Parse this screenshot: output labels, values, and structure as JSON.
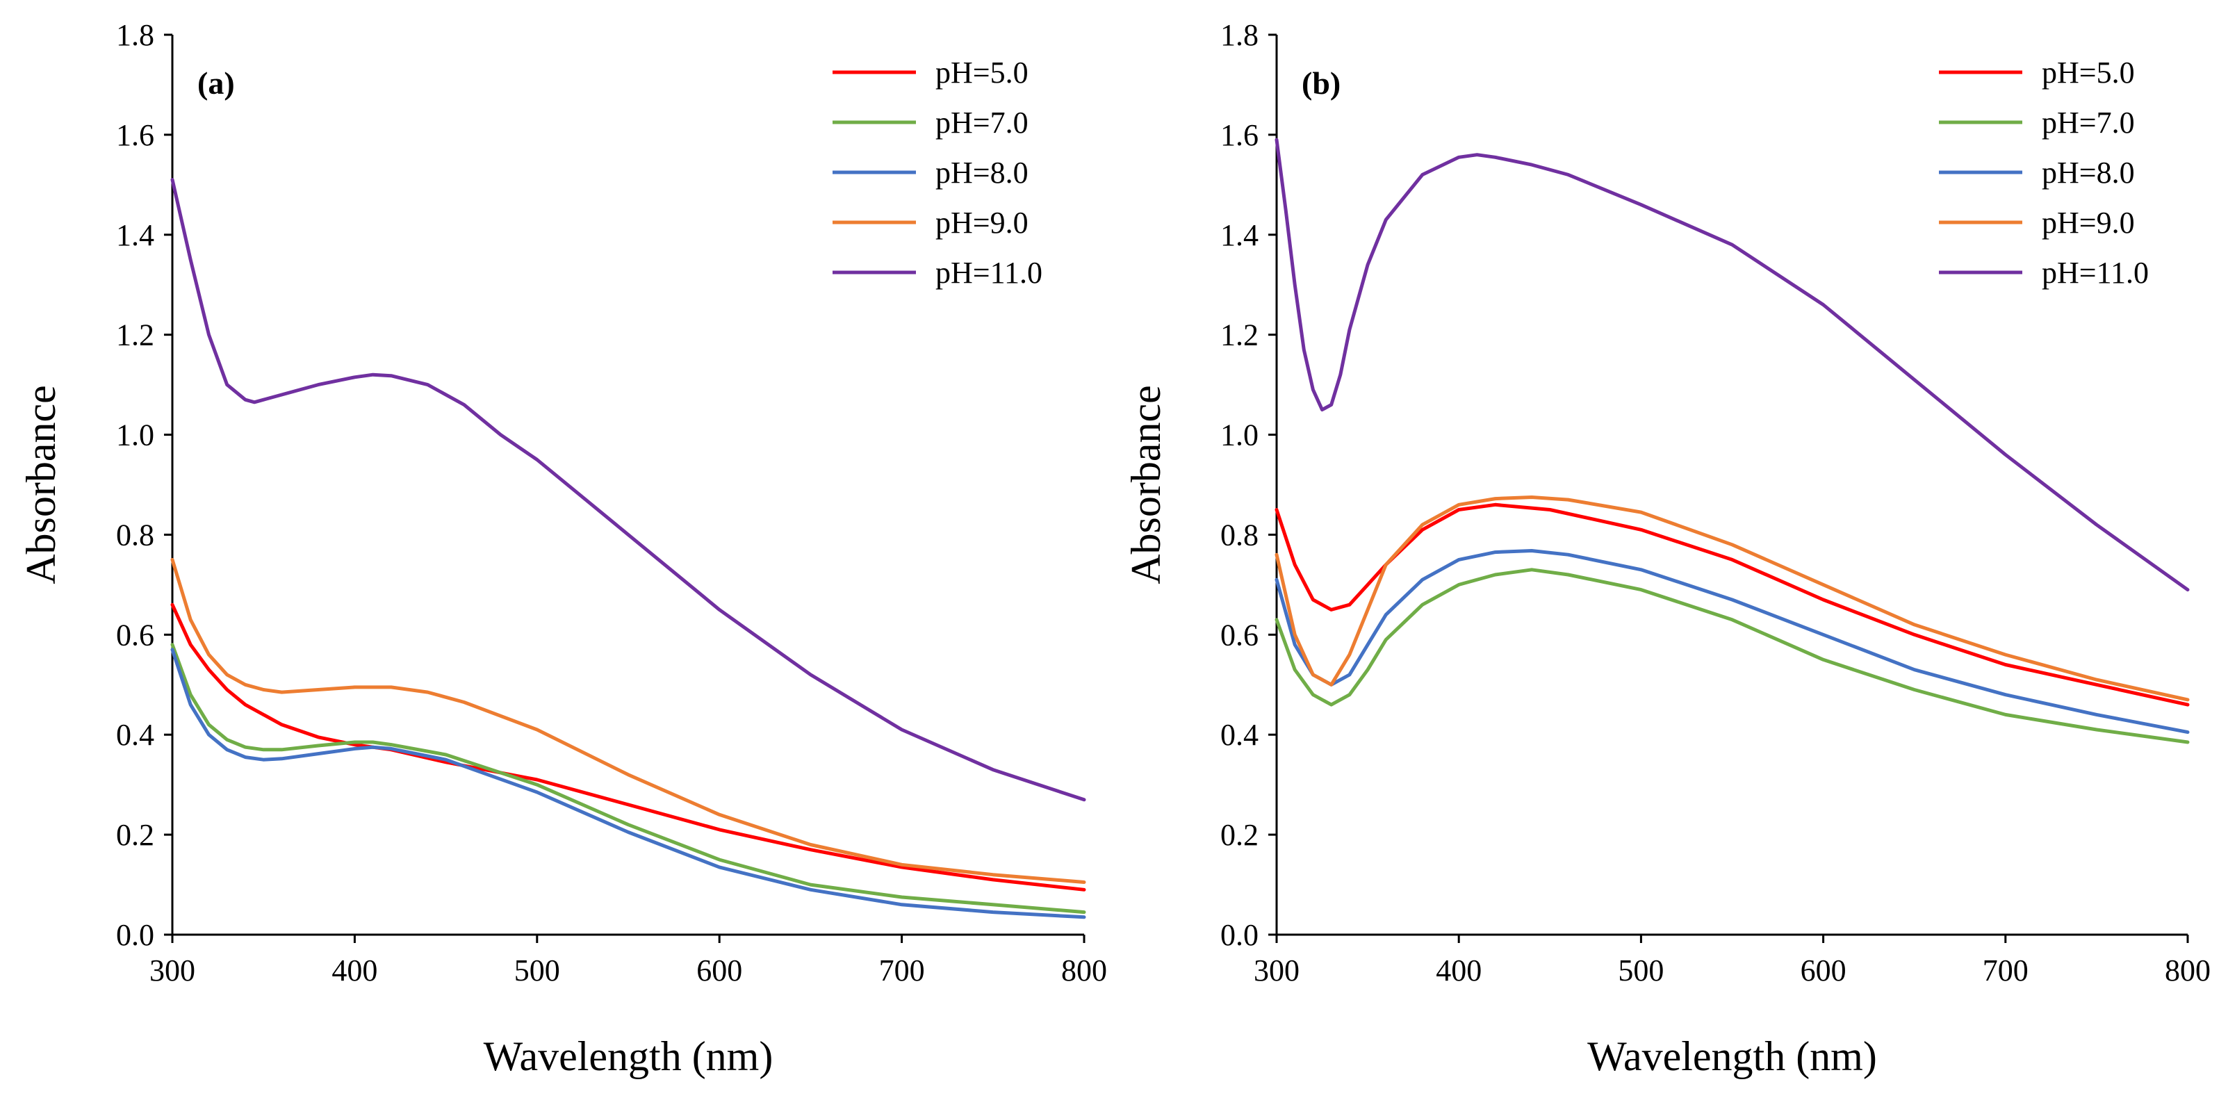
{
  "chart_data": [
    {
      "type": "line",
      "panel_label": "(a)",
      "xlabel": "Wavelength (nm)",
      "ylabel": "Absorbance",
      "xlim": [
        300,
        800
      ],
      "ylim": [
        0,
        1.8
      ],
      "xticks": [
        300,
        400,
        500,
        600,
        700,
        800
      ],
      "yticks": [
        0.0,
        0.2,
        0.4,
        0.6,
        0.8,
        1.0,
        1.2,
        1.4,
        1.6,
        1.8
      ],
      "xtick_labels": [
        "300",
        "400",
        "500",
        "600",
        "700",
        "800"
      ],
      "ytick_labels": [
        "0.0",
        "0.2",
        "0.4",
        "0.6",
        "0.8",
        "1.0",
        "1.2",
        "1.4",
        "1.6",
        "1.8"
      ],
      "grid": false,
      "legend": "top-right",
      "series": [
        {
          "name": "pH=5.0",
          "color": "#ff0000",
          "x": [
            300,
            310,
            320,
            330,
            340,
            350,
            360,
            380,
            400,
            420,
            450,
            500,
            550,
            600,
            650,
            700,
            750,
            800
          ],
          "y": [
            0.66,
            0.58,
            0.53,
            0.49,
            0.46,
            0.44,
            0.42,
            0.395,
            0.38,
            0.37,
            0.345,
            0.31,
            0.26,
            0.21,
            0.17,
            0.135,
            0.11,
            0.09
          ]
        },
        {
          "name": "pH=7.0",
          "color": "#70ad47",
          "x": [
            300,
            310,
            320,
            330,
            340,
            350,
            360,
            380,
            400,
            410,
            420,
            450,
            500,
            550,
            600,
            650,
            700,
            750,
            800
          ],
          "y": [
            0.58,
            0.48,
            0.42,
            0.39,
            0.375,
            0.37,
            0.37,
            0.378,
            0.385,
            0.385,
            0.38,
            0.36,
            0.3,
            0.22,
            0.15,
            0.1,
            0.075,
            0.06,
            0.045
          ]
        },
        {
          "name": "pH=8.0",
          "color": "#4472c4",
          "x": [
            300,
            310,
            320,
            330,
            340,
            350,
            360,
            380,
            400,
            410,
            420,
            450,
            500,
            550,
            600,
            650,
            700,
            750,
            800
          ],
          "y": [
            0.57,
            0.46,
            0.4,
            0.37,
            0.355,
            0.35,
            0.352,
            0.362,
            0.372,
            0.375,
            0.372,
            0.35,
            0.285,
            0.205,
            0.135,
            0.09,
            0.06,
            0.045,
            0.035
          ]
        },
        {
          "name": "pH=9.0",
          "color": "#ed7d31",
          "x": [
            300,
            310,
            320,
            330,
            340,
            350,
            360,
            380,
            400,
            420,
            440,
            460,
            500,
            550,
            600,
            650,
            700,
            750,
            800
          ],
          "y": [
            0.75,
            0.63,
            0.56,
            0.52,
            0.5,
            0.49,
            0.485,
            0.49,
            0.495,
            0.495,
            0.485,
            0.465,
            0.41,
            0.32,
            0.24,
            0.18,
            0.14,
            0.12,
            0.105
          ]
        },
        {
          "name": "pH=11.0",
          "color": "#7030a0",
          "x": [
            300,
            310,
            320,
            330,
            340,
            345,
            350,
            360,
            380,
            400,
            410,
            420,
            440,
            460,
            480,
            500,
            550,
            600,
            650,
            700,
            750,
            800
          ],
          "y": [
            1.51,
            1.35,
            1.2,
            1.1,
            1.07,
            1.065,
            1.07,
            1.08,
            1.1,
            1.115,
            1.12,
            1.118,
            1.1,
            1.06,
            1.0,
            0.95,
            0.8,
            0.65,
            0.52,
            0.41,
            0.33,
            0.27
          ]
        }
      ]
    },
    {
      "type": "line",
      "panel_label": "(b)",
      "xlabel": "Wavelength (nm)",
      "ylabel": "Absorbance",
      "xlim": [
        300,
        800
      ],
      "ylim": [
        0,
        1.8
      ],
      "xticks": [
        300,
        400,
        500,
        600,
        700,
        800
      ],
      "yticks": [
        0.0,
        0.2,
        0.4,
        0.6,
        0.8,
        1.0,
        1.2,
        1.4,
        1.6,
        1.8
      ],
      "xtick_labels": [
        "300",
        "400",
        "500",
        "600",
        "700",
        "800"
      ],
      "ytick_labels": [
        "0.0",
        "0.2",
        "0.4",
        "0.6",
        "0.8",
        "1.0",
        "1.2",
        "1.4",
        "1.6",
        "1.8"
      ],
      "grid": false,
      "legend": "top-right",
      "series": [
        {
          "name": "pH=5.0",
          "color": "#ff0000",
          "x": [
            300,
            310,
            320,
            330,
            340,
            350,
            360,
            380,
            400,
            420,
            450,
            500,
            550,
            600,
            650,
            700,
            750,
            800
          ],
          "y": [
            0.85,
            0.74,
            0.67,
            0.65,
            0.66,
            0.7,
            0.74,
            0.81,
            0.85,
            0.86,
            0.85,
            0.81,
            0.75,
            0.67,
            0.6,
            0.54,
            0.5,
            0.46
          ]
        },
        {
          "name": "pH=7.0",
          "color": "#70ad47",
          "x": [
            300,
            310,
            320,
            330,
            340,
            350,
            360,
            380,
            400,
            420,
            440,
            460,
            500,
            550,
            600,
            650,
            700,
            750,
            800
          ],
          "y": [
            0.63,
            0.53,
            0.48,
            0.46,
            0.48,
            0.53,
            0.59,
            0.66,
            0.7,
            0.72,
            0.73,
            0.72,
            0.69,
            0.63,
            0.55,
            0.49,
            0.44,
            0.41,
            0.385
          ]
        },
        {
          "name": "pH=8.0",
          "color": "#4472c4",
          "x": [
            300,
            310,
            320,
            330,
            340,
            350,
            360,
            380,
            400,
            420,
            440,
            460,
            500,
            550,
            600,
            650,
            700,
            750,
            800
          ],
          "y": [
            0.71,
            0.58,
            0.52,
            0.5,
            0.52,
            0.58,
            0.64,
            0.71,
            0.75,
            0.765,
            0.768,
            0.76,
            0.73,
            0.67,
            0.6,
            0.53,
            0.48,
            0.44,
            0.405
          ]
        },
        {
          "name": "pH=9.0",
          "color": "#ed7d31",
          "x": [
            300,
            310,
            320,
            330,
            340,
            350,
            360,
            380,
            400,
            420,
            440,
            460,
            500,
            550,
            600,
            650,
            700,
            750,
            800
          ],
          "y": [
            0.76,
            0.6,
            0.52,
            0.5,
            0.56,
            0.65,
            0.74,
            0.82,
            0.86,
            0.872,
            0.875,
            0.87,
            0.845,
            0.78,
            0.7,
            0.62,
            0.56,
            0.51,
            0.47
          ]
        },
        {
          "name": "pH=11.0",
          "color": "#7030a0",
          "x": [
            300,
            305,
            310,
            315,
            320,
            325,
            330,
            335,
            340,
            350,
            360,
            380,
            400,
            410,
            420,
            440,
            460,
            500,
            550,
            600,
            650,
            700,
            750,
            800
          ],
          "y": [
            1.59,
            1.45,
            1.3,
            1.17,
            1.09,
            1.05,
            1.06,
            1.12,
            1.21,
            1.34,
            1.43,
            1.52,
            1.555,
            1.56,
            1.555,
            1.54,
            1.52,
            1.46,
            1.38,
            1.26,
            1.11,
            0.96,
            0.82,
            0.69
          ]
        }
      ]
    }
  ]
}
